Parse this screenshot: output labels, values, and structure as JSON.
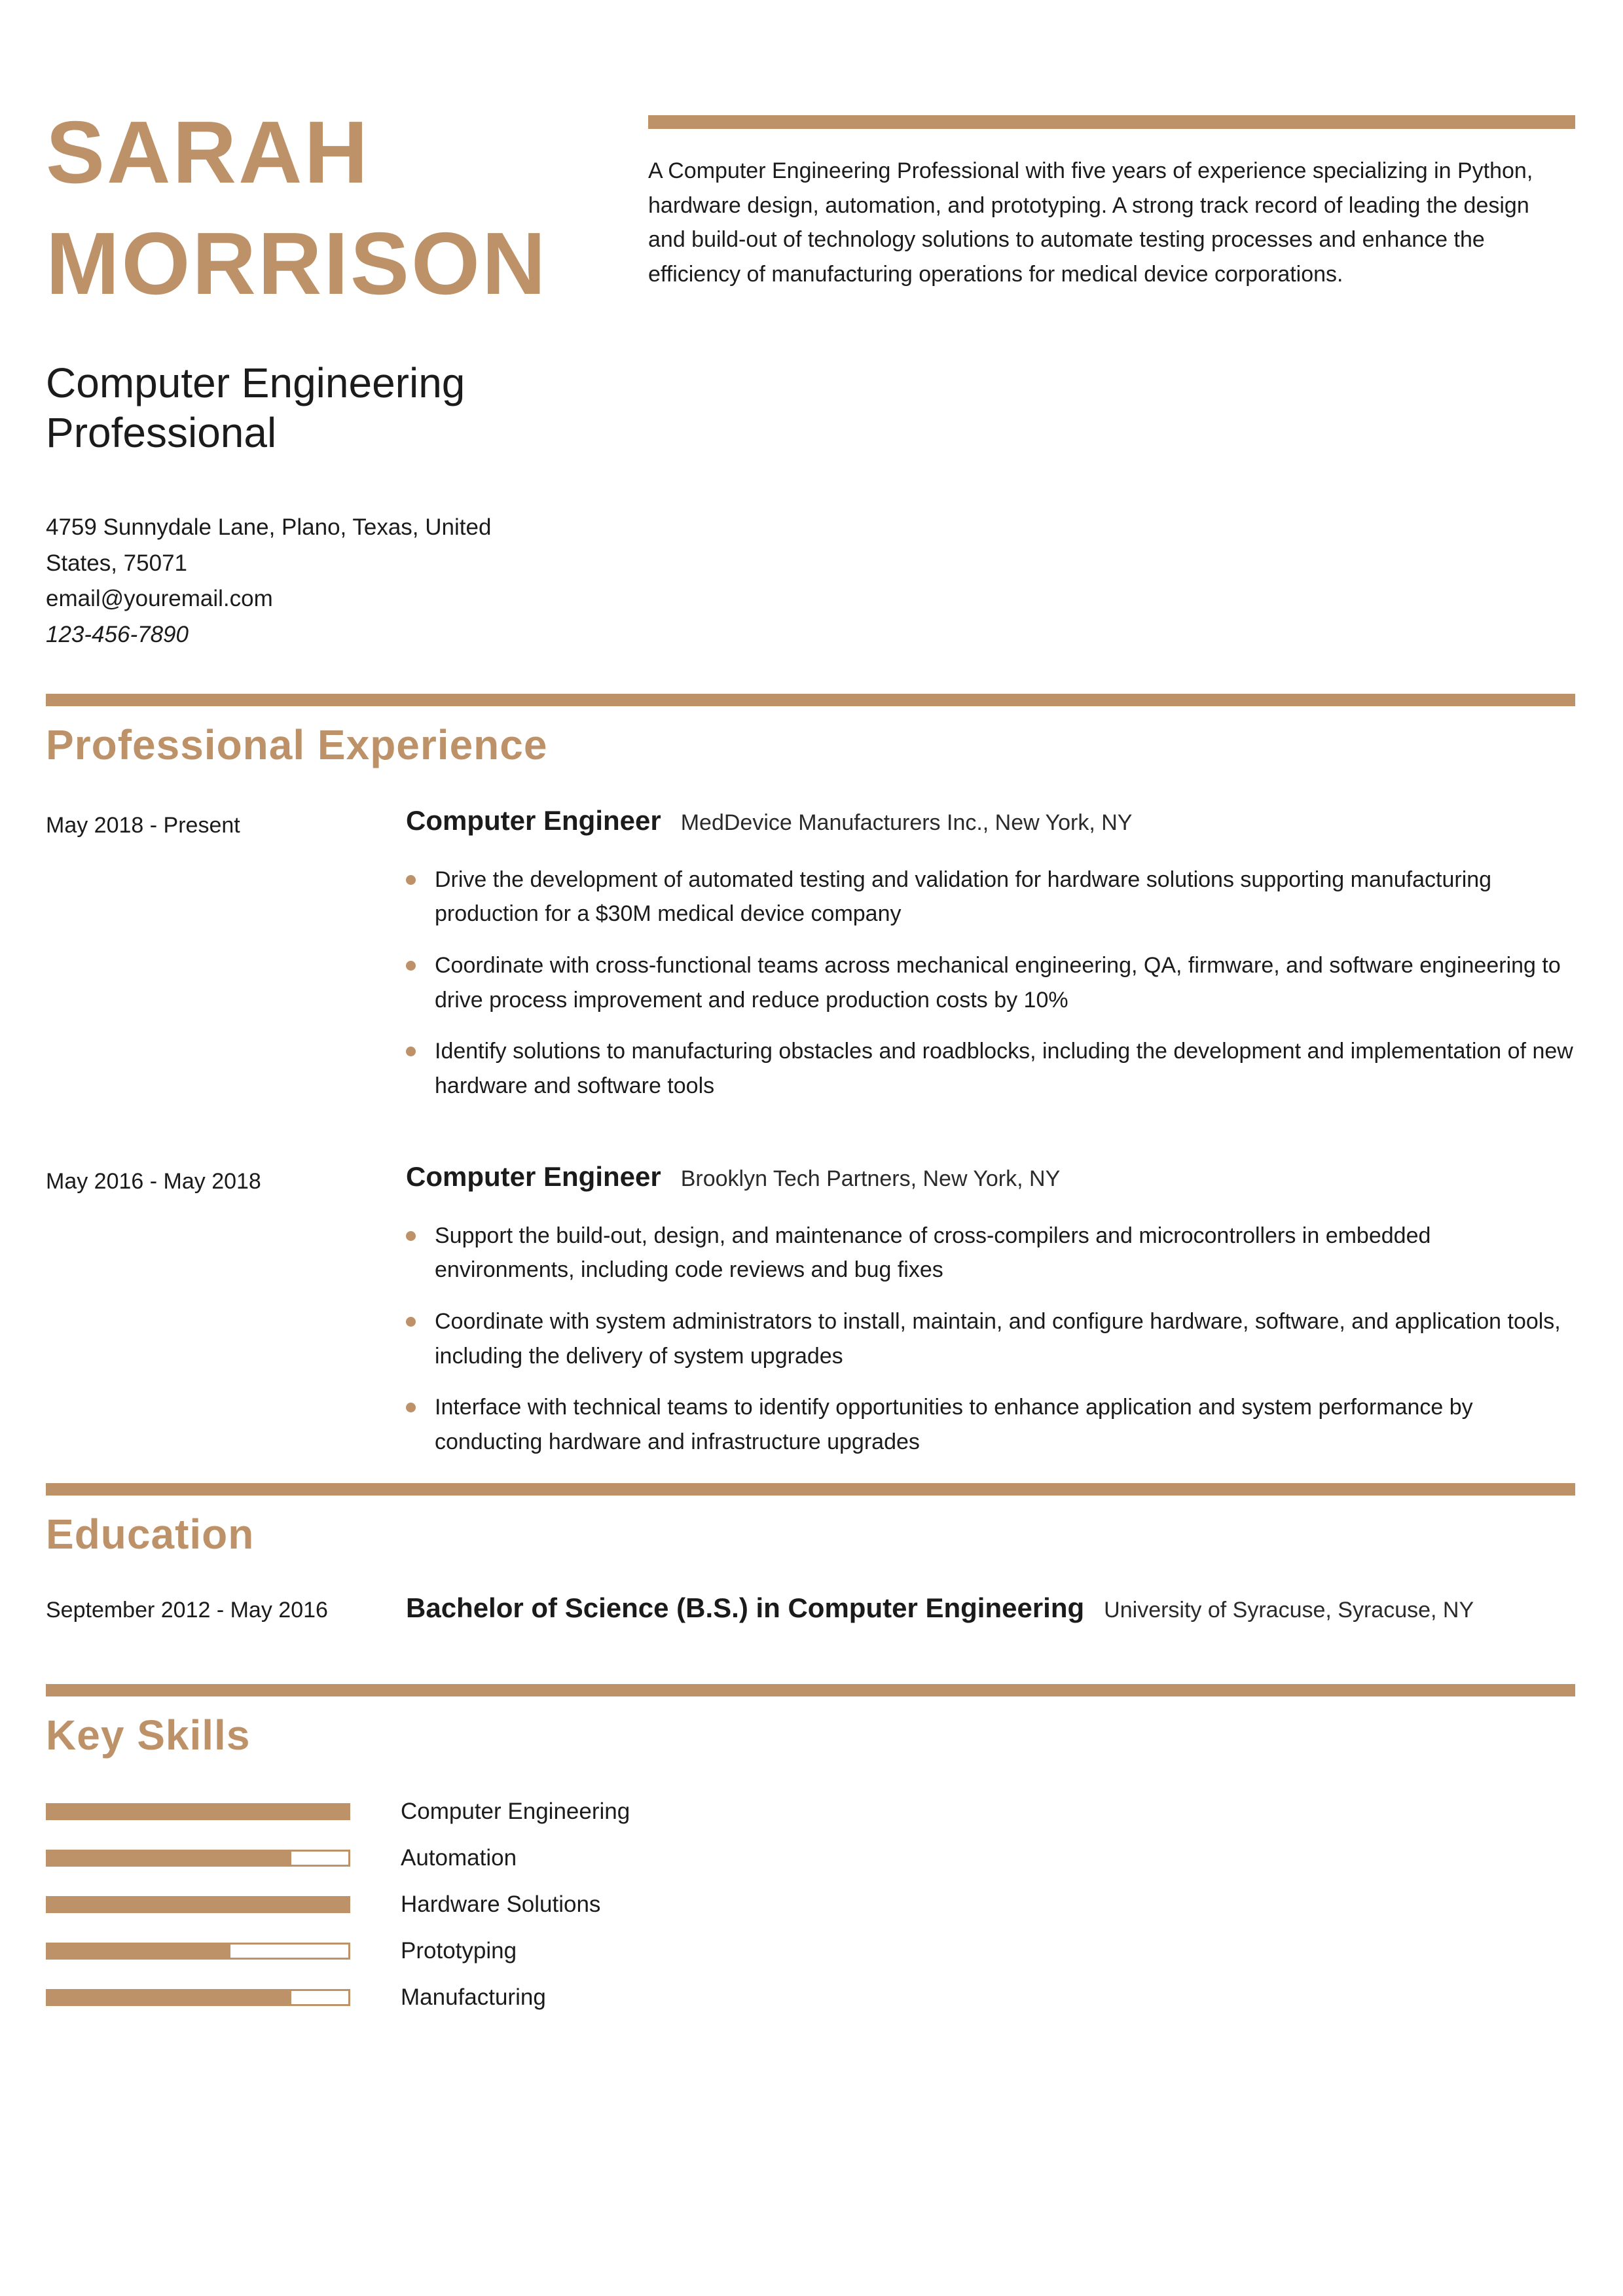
{
  "colors": {
    "accent": "#BD9269"
  },
  "header": {
    "name_line1": "SARAH",
    "name_line2": "MORRISON",
    "title": "Computer Engineering Professional",
    "address": "4759 Sunnydale Lane, Plano, Texas, United States, 75071",
    "email": "email@youremail.com",
    "phone": "123-456-7890",
    "summary": "A Computer Engineering Professional with five years of experience specializing in Python, hardware design, automation, and prototyping. A strong track record of leading the design and build-out of technology solutions to automate testing processes and enhance the efficiency of manufacturing operations for medical device corporations."
  },
  "experience": {
    "section_title": "Professional Experience",
    "jobs": [
      {
        "date": "May 2018 - Present",
        "role": "Computer Engineer",
        "company": "MedDevice Manufacturers Inc., New York, NY",
        "bullets": [
          "Drive the development of automated testing and validation for hardware solutions supporting manufacturing production for a $30M medical device company",
          "Coordinate with cross-functional teams across mechanical engineering, QA, firmware, and software engineering to drive process improvement and reduce production costs by 10%",
          "Identify solutions to manufacturing obstacles and roadblocks, including the development and implementation of new hardware and software tools"
        ]
      },
      {
        "date": "May 2016 - May 2018",
        "role": "Computer Engineer",
        "company": "Brooklyn Tech Partners, New York, NY",
        "bullets": [
          "Support the build-out, design, and maintenance of cross-compilers and microcontrollers in embedded environments, including code reviews and bug fixes",
          "Coordinate with system administrators to install, maintain, and configure hardware, software, and application tools, including the delivery of system upgrades",
          "Interface with technical teams to identify opportunities to enhance application and system performance by conducting hardware and infrastructure upgrades"
        ]
      }
    ]
  },
  "education": {
    "section_title": "Education",
    "date": "September 2012 - May 2016",
    "degree": "Bachelor of Science (B.S.) in Computer Engineering",
    "school": "University of Syracuse, Syracuse, NY"
  },
  "skills": {
    "section_title": "Key Skills",
    "items": [
      {
        "label": "Computer Engineering",
        "percent": 100
      },
      {
        "label": "Automation",
        "percent": 80
      },
      {
        "label": "Hardware Solutions",
        "percent": 100
      },
      {
        "label": "Prototyping",
        "percent": 60
      },
      {
        "label": "Manufacturing",
        "percent": 80
      }
    ]
  }
}
